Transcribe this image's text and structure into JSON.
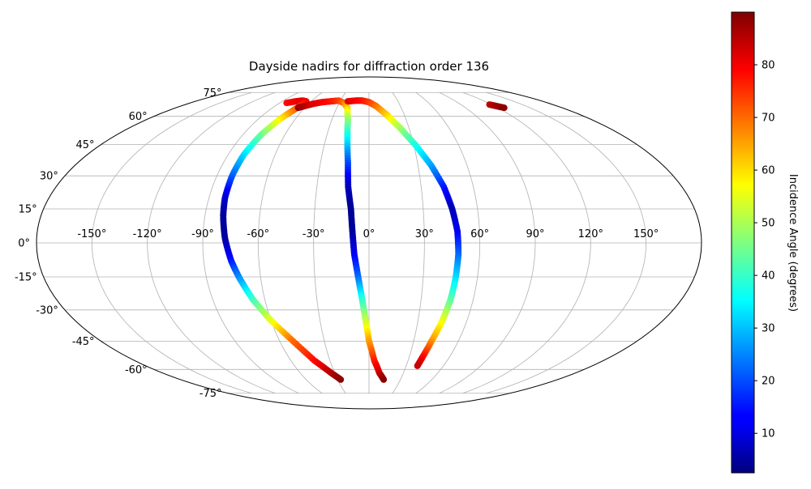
{
  "chart_data": {
    "type": "scatter",
    "projection": "mollweide",
    "title": "Dayside nadirs for diffraction order 136",
    "grid": true,
    "lon_ticks": [
      -150,
      -120,
      -90,
      -60,
      -30,
      0,
      30,
      60,
      90,
      120,
      150
    ],
    "lon_tick_labels": [
      "-150°",
      "-120°",
      "-90°",
      "-60°",
      "-30°",
      "0°",
      "30°",
      "60°",
      "90°",
      "120°",
      "150°"
    ],
    "lat_ticks": [
      -75,
      -60,
      -45,
      -30,
      -15,
      0,
      15,
      30,
      45,
      60,
      75
    ],
    "lat_tick_labels": [
      "-75°",
      "-60°",
      "-45°",
      "-30°",
      "-15°",
      "0°",
      "15°",
      "30°",
      "45°",
      "60°",
      "75°"
    ],
    "colorbar": {
      "label": "Incidence Angle (degrees)",
      "colormap": "jet",
      "range": [
        2.5,
        90
      ],
      "ticks": [
        10,
        20,
        30,
        40,
        50,
        60,
        70,
        80
      ],
      "tick_labels": [
        "10",
        "20",
        "30",
        "40",
        "50",
        "60",
        "70",
        "80"
      ]
    },
    "series": [
      {
        "points": [
          {
            "lon": -83,
            "lat": 68,
            "c": 78
          },
          {
            "lon": -76,
            "lat": 69,
            "c": 80
          },
          {
            "lon": -70,
            "lat": 69.5,
            "c": 82
          },
          {
            "lon": -65,
            "lat": 69,
            "c": 80
          },
          {
            "lon": -66,
            "lat": 66,
            "c": 76
          },
          {
            "lon": -72,
            "lat": 59,
            "c": 60
          },
          {
            "lon": -77,
            "lat": 50,
            "c": 45
          },
          {
            "lon": -80,
            "lat": 40,
            "c": 33
          },
          {
            "lon": -81,
            "lat": 30,
            "c": 22
          },
          {
            "lon": -81,
            "lat": 20,
            "c": 10
          },
          {
            "lon": -80,
            "lat": 12,
            "c": 5
          },
          {
            "lon": -78,
            "lat": 2,
            "c": 5
          },
          {
            "lon": -75,
            "lat": -8,
            "c": 15
          },
          {
            "lon": -72,
            "lat": -15,
            "c": 25
          },
          {
            "lon": -67,
            "lat": -25,
            "c": 40
          },
          {
            "lon": -60,
            "lat": -35,
            "c": 55
          },
          {
            "lon": -51,
            "lat": -45,
            "c": 70
          },
          {
            "lon": -42,
            "lat": -55,
            "c": 78
          },
          {
            "lon": -33,
            "lat": -62,
            "c": 85
          },
          {
            "lon": -27,
            "lat": -66,
            "c": 89
          }
        ]
      },
      {
        "points": [
          {
            "lon": -66,
            "lat": 65,
            "c": 89
          },
          {
            "lon": -62,
            "lat": 66,
            "c": 86
          },
          {
            "lon": -55,
            "lat": 67.5,
            "c": 82
          },
          {
            "lon": -48,
            "lat": 68.5,
            "c": 80
          },
          {
            "lon": -40,
            "lat": 69,
            "c": 78
          },
          {
            "lon": -32,
            "lat": 69.5,
            "c": 75
          },
          {
            "lon": -25,
            "lat": 68,
            "c": 70
          },
          {
            "lon": -20,
            "lat": 65,
            "c": 62
          },
          {
            "lon": -17,
            "lat": 58,
            "c": 48
          },
          {
            "lon": -15,
            "lat": 48,
            "c": 35
          },
          {
            "lon": -13,
            "lat": 36,
            "c": 20
          },
          {
            "lon": -12,
            "lat": 25,
            "c": 8
          },
          {
            "lon": -10,
            "lat": 15,
            "c": 4
          },
          {
            "lon": -9,
            "lat": 5,
            "c": 5
          },
          {
            "lon": -8,
            "lat": -5,
            "c": 12
          },
          {
            "lon": -6,
            "lat": -15,
            "c": 22
          },
          {
            "lon": -4,
            "lat": -25,
            "c": 38
          },
          {
            "lon": -2,
            "lat": -35,
            "c": 52
          },
          {
            "lon": 0,
            "lat": -45,
            "c": 65
          },
          {
            "lon": 4,
            "lat": -55,
            "c": 76
          },
          {
            "lon": 9,
            "lat": -62,
            "c": 83
          },
          {
            "lon": 14,
            "lat": -66,
            "c": 89
          }
        ]
      },
      {
        "points": [
          {
            "lon": -22,
            "lat": 69,
            "c": 82
          },
          {
            "lon": -14,
            "lat": 69.5,
            "c": 80
          },
          {
            "lon": -7,
            "lat": 69.5,
            "c": 78
          },
          {
            "lon": 0,
            "lat": 68.5,
            "c": 75
          },
          {
            "lon": 7,
            "lat": 66,
            "c": 70
          },
          {
            "lon": 15,
            "lat": 61,
            "c": 62
          },
          {
            "lon": 23,
            "lat": 54,
            "c": 50
          },
          {
            "lon": 31,
            "lat": 45,
            "c": 38
          },
          {
            "lon": 38,
            "lat": 35,
            "c": 28
          },
          {
            "lon": 43,
            "lat": 25,
            "c": 16
          },
          {
            "lon": 46,
            "lat": 15,
            "c": 7
          },
          {
            "lon": 48,
            "lat": 5,
            "c": 12
          },
          {
            "lon": 48.5,
            "lat": -5,
            "c": 22
          },
          {
            "lon": 48,
            "lat": -15,
            "c": 32
          },
          {
            "lon": 47,
            "lat": -25,
            "c": 42
          },
          {
            "lon": 45,
            "lat": -35,
            "c": 55
          },
          {
            "lon": 42,
            "lat": -45,
            "c": 66
          },
          {
            "lon": 40,
            "lat": -53,
            "c": 78
          },
          {
            "lon": 39,
            "lat": -58,
            "c": 84
          }
        ]
      },
      {
        "points": [
          {
            "lon": 118,
            "lat": 67,
            "c": 84
          },
          {
            "lon": 122,
            "lat": 66,
            "c": 87
          },
          {
            "lon": 126,
            "lat": 65,
            "c": 89
          }
        ]
      }
    ]
  }
}
